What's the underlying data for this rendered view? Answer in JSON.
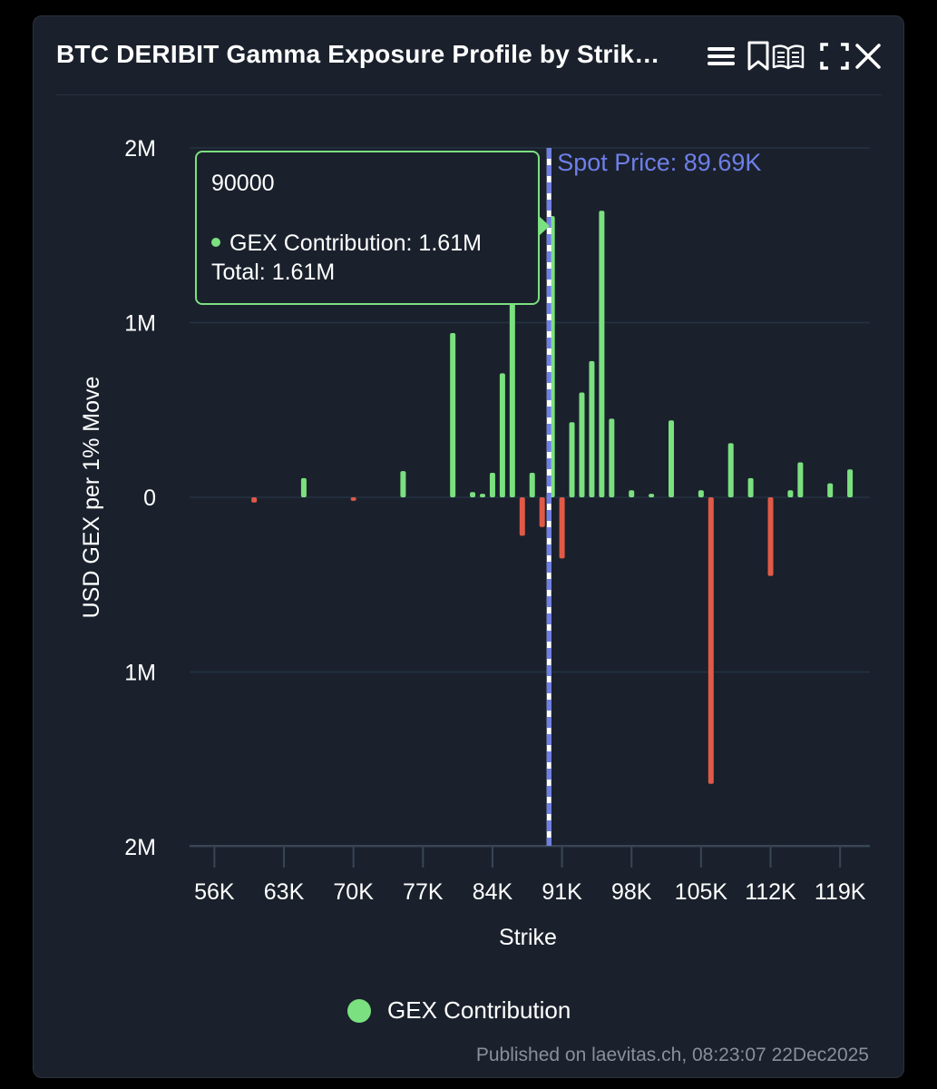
{
  "header": {
    "title": "BTC DERIBIT Gamma Exposure Profile by Strik…",
    "icons": [
      "menu-icon",
      "bookmark-icon",
      "book-open-icon",
      "fullscreen-icon",
      "close-icon"
    ]
  },
  "colors": {
    "positive": "#7be07f",
    "negative": "#e05a47",
    "spot_line": "#6f7fe8",
    "grid": "#243242",
    "axis_text": "#ffffff"
  },
  "tooltip": {
    "strike": "90000",
    "series_label": "GEX Contribution: 1.61M",
    "total_label": "Total: 1.61M"
  },
  "legend": {
    "label": "GEX Contribution"
  },
  "footer": {
    "credit": "Published on laevitas.ch, 08:23:07 22Dec2025"
  },
  "chart_data": {
    "type": "bar",
    "title": "BTC DERIBIT Gamma Exposure Profile by Strike",
    "xlabel": "Strike",
    "ylabel": "USD GEX per 1% Move",
    "xlim": [
      53500,
      122000
    ],
    "ylim": [
      -2000000,
      2000000
    ],
    "x_ticks": [
      56000,
      63000,
      70000,
      77000,
      84000,
      91000,
      98000,
      105000,
      112000,
      119000
    ],
    "x_tick_labels": [
      "56K",
      "63K",
      "70K",
      "77K",
      "84K",
      "91K",
      "98K",
      "105K",
      "112K",
      "119K"
    ],
    "y_ticks": [
      2000000,
      1000000,
      0,
      -1000000,
      -2000000
    ],
    "y_tick_labels": [
      "2M",
      "1M",
      "0",
      "1M",
      "2M"
    ],
    "spot_price": 89690,
    "spot_label": "Spot Price: 89.69K",
    "series": [
      {
        "name": "GEX Contribution",
        "points": [
          {
            "strike": 60000,
            "value": -30000
          },
          {
            "strike": 65000,
            "value": 110000
          },
          {
            "strike": 70000,
            "value": -20000
          },
          {
            "strike": 75000,
            "value": 150000
          },
          {
            "strike": 80000,
            "value": 940000
          },
          {
            "strike": 82000,
            "value": 30000
          },
          {
            "strike": 83000,
            "value": 20000
          },
          {
            "strike": 84000,
            "value": 140000
          },
          {
            "strike": 85000,
            "value": 710000
          },
          {
            "strike": 86000,
            "value": 1130000
          },
          {
            "strike": 87000,
            "value": -220000
          },
          {
            "strike": 88000,
            "value": 140000
          },
          {
            "strike": 89000,
            "value": -170000
          },
          {
            "strike": 90000,
            "value": 1610000
          },
          {
            "strike": 91000,
            "value": -350000
          },
          {
            "strike": 92000,
            "value": 430000
          },
          {
            "strike": 93000,
            "value": 600000
          },
          {
            "strike": 94000,
            "value": 780000
          },
          {
            "strike": 95000,
            "value": 1640000
          },
          {
            "strike": 96000,
            "value": 450000
          },
          {
            "strike": 98000,
            "value": 40000
          },
          {
            "strike": 100000,
            "value": 20000
          },
          {
            "strike": 102000,
            "value": 440000
          },
          {
            "strike": 105000,
            "value": 40000
          },
          {
            "strike": 106000,
            "value": -1640000
          },
          {
            "strike": 108000,
            "value": 310000
          },
          {
            "strike": 110000,
            "value": 110000
          },
          {
            "strike": 112000,
            "value": -450000
          },
          {
            "strike": 114000,
            "value": 40000
          },
          {
            "strike": 115000,
            "value": 200000
          },
          {
            "strike": 118000,
            "value": 80000
          },
          {
            "strike": 120000,
            "value": 160000
          }
        ]
      }
    ]
  }
}
